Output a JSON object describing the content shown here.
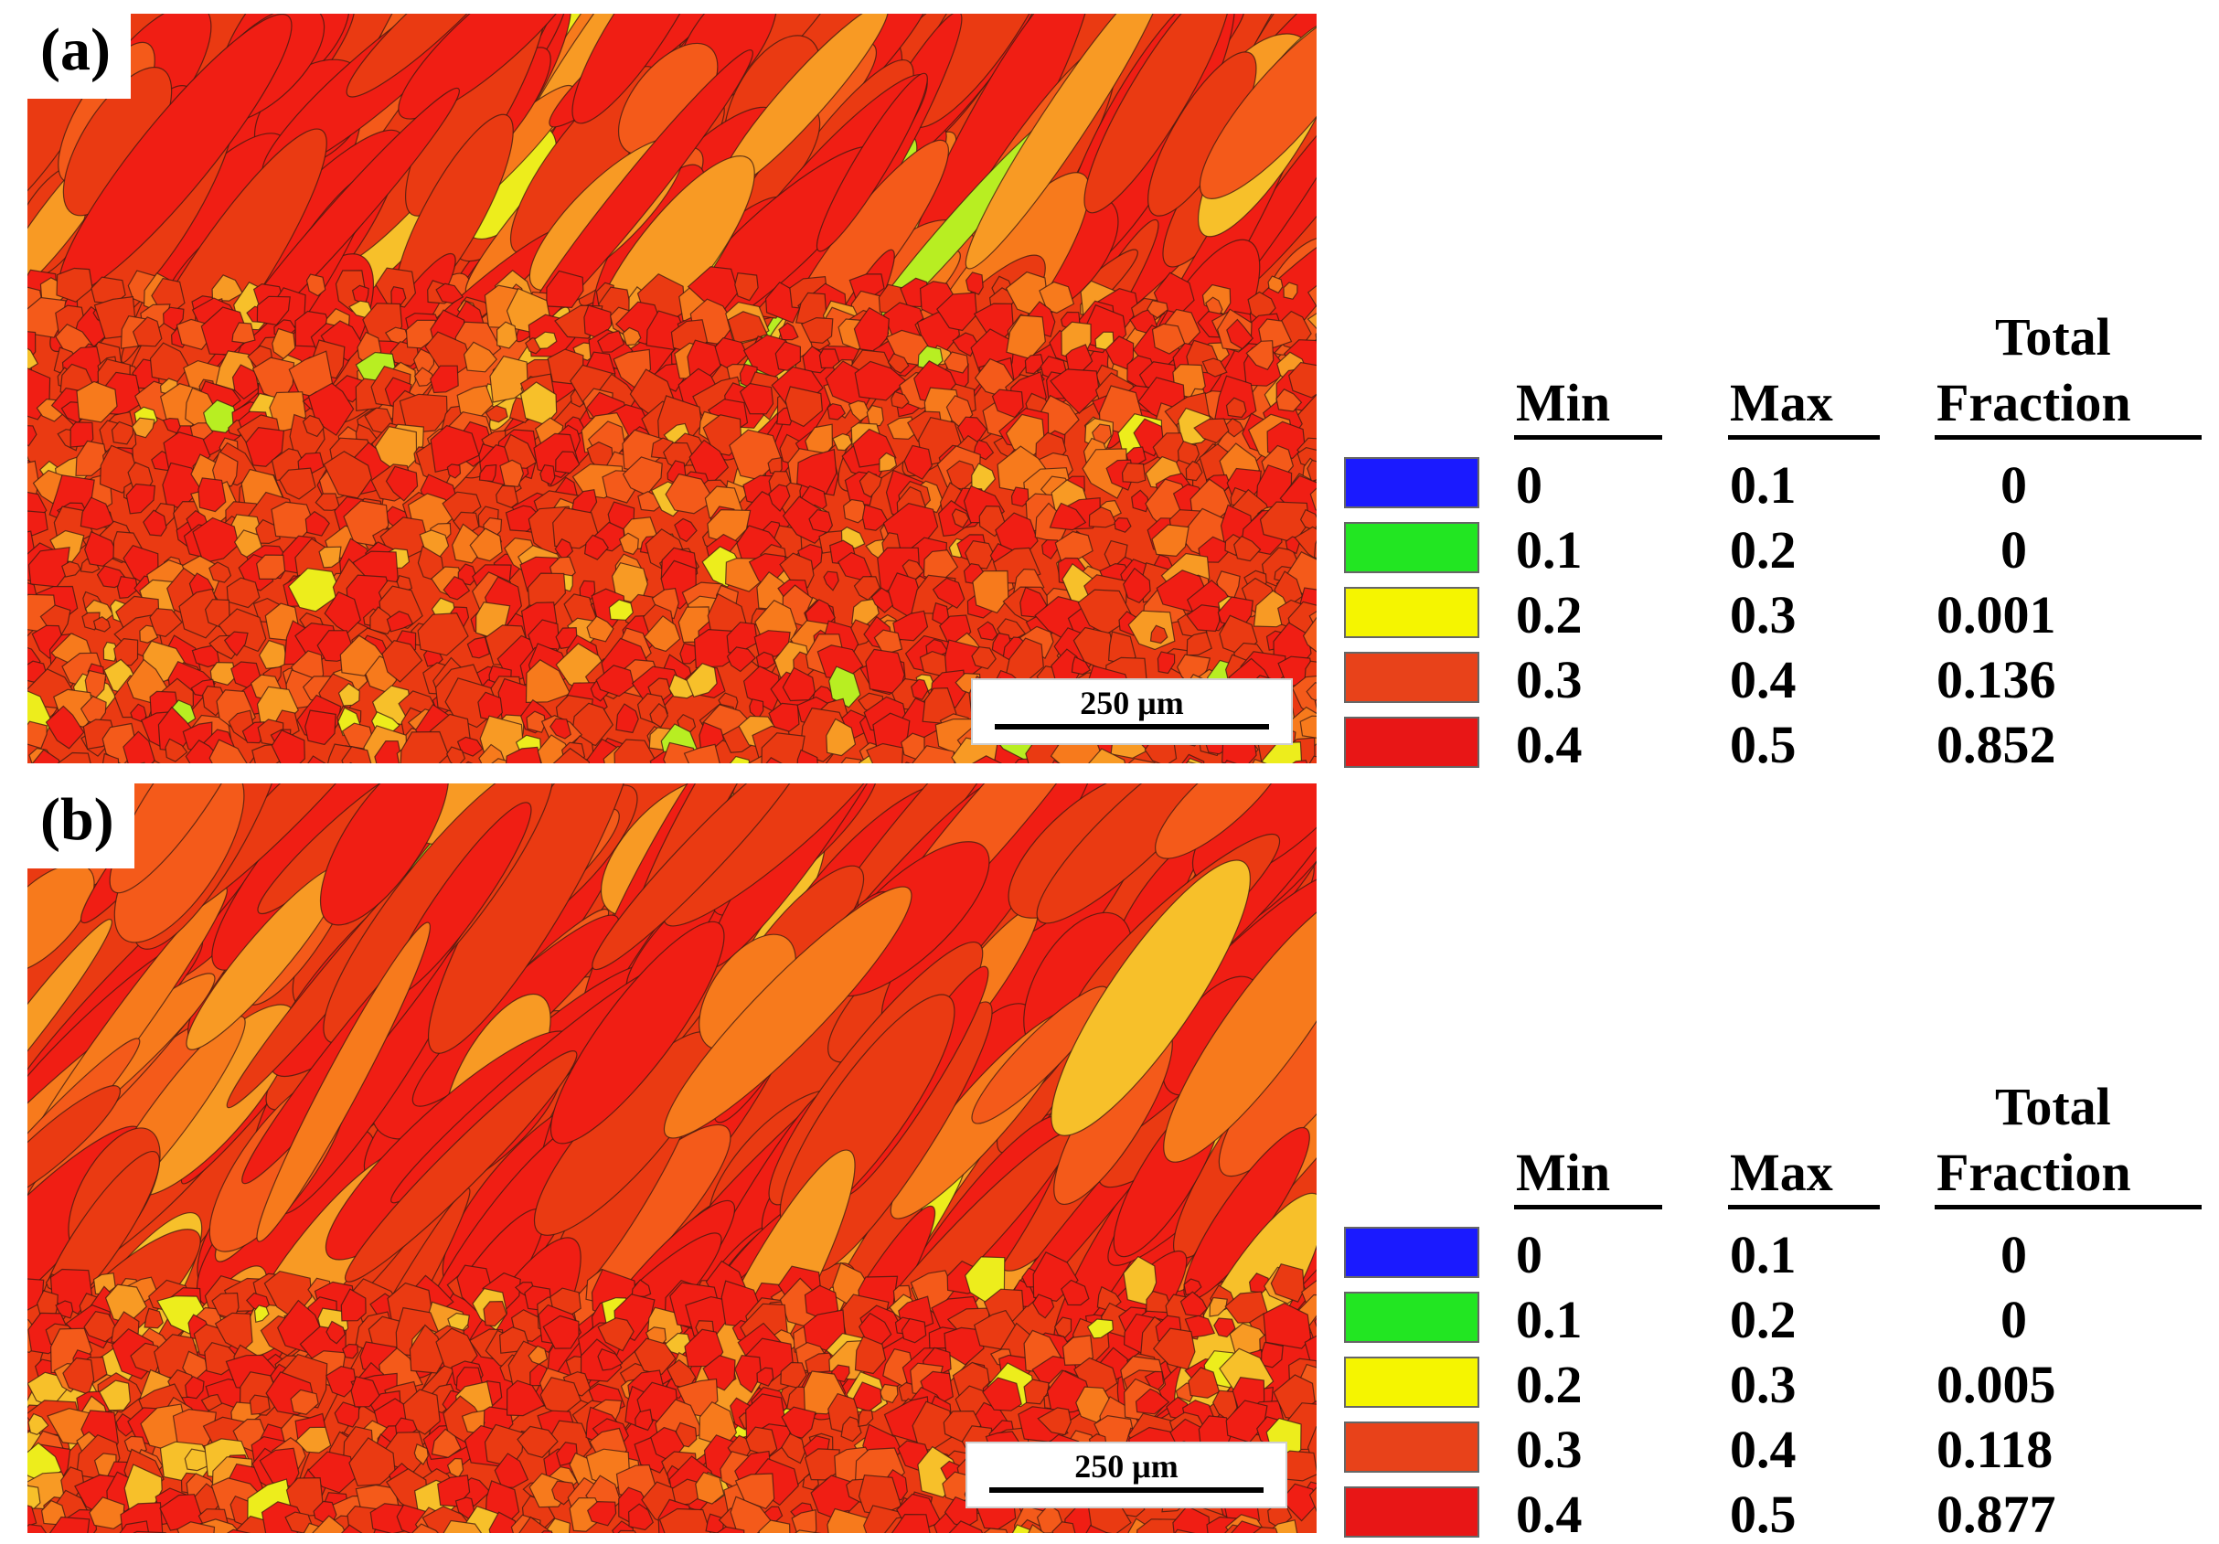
{
  "panels": [
    {
      "id": "a",
      "label": "(a)",
      "scale_bar": "250 μm",
      "legend": {
        "headers": {
          "min": "Min",
          "max": "Max",
          "total_line1": "Total",
          "total_line2": "Fraction"
        },
        "rows": [
          {
            "min": "0",
            "max": "0.1",
            "fraction": "0",
            "color": "#1a1aff"
          },
          {
            "min": "0.1",
            "max": "0.2",
            "fraction": "0",
            "color": "#22e622"
          },
          {
            "min": "0.2",
            "max": "0.3",
            "fraction": "0.001",
            "color": "#f5f500"
          },
          {
            "min": "0.3",
            "max": "0.4",
            "fraction": "0.136",
            "color": "#e8421a"
          },
          {
            "min": "0.4",
            "max": "0.5",
            "fraction": "0.852",
            "color": "#e81616"
          }
        ]
      }
    },
    {
      "id": "b",
      "label": "(b)",
      "scale_bar": "250 μm",
      "legend": {
        "headers": {
          "min": "Min",
          "max": "Max",
          "total_line1": "Total",
          "total_line2": "Fraction"
        },
        "rows": [
          {
            "min": "0",
            "max": "0.1",
            "fraction": "0",
            "color": "#1a1aff"
          },
          {
            "min": "0.1",
            "max": "0.2",
            "fraction": "0",
            "color": "#22e622"
          },
          {
            "min": "0.2",
            "max": "0.3",
            "fraction": "0.005",
            "color": "#f5f500"
          },
          {
            "min": "0.3",
            "max": "0.4",
            "fraction": "0.118",
            "color": "#e8421a"
          },
          {
            "min": "0.4",
            "max": "0.5",
            "fraction": "0.877",
            "color": "#e81616"
          }
        ]
      }
    }
  ],
  "map_palette": [
    "#f01e14",
    "#ea3a12",
    "#f45a1a",
    "#f77a1c",
    "#f89a24",
    "#f7c02a",
    "#eded1c",
    "#b8ee22"
  ]
}
